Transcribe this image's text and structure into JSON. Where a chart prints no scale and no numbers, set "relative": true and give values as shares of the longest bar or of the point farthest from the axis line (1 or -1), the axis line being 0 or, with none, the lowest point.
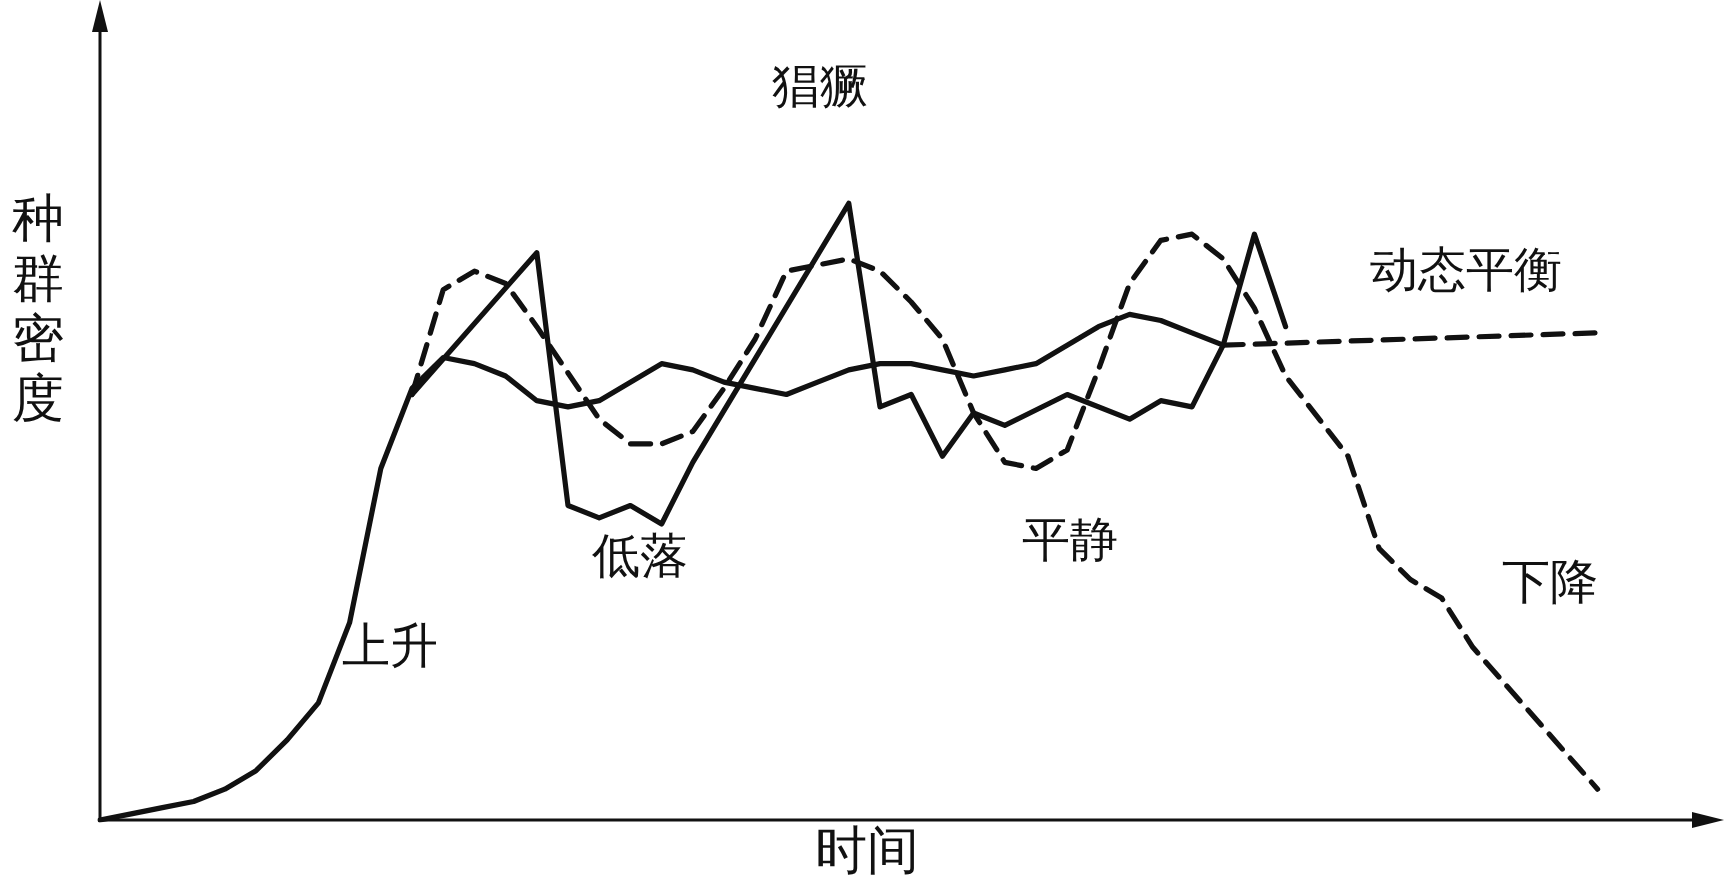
{
  "chart_data": {
    "type": "line",
    "relative": true,
    "xlabel": "时间",
    "ylabel": "种群密度",
    "marker": "none",
    "categories": [
      null,
      null,
      null,
      null,
      null,
      null,
      null,
      null,
      null,
      null,
      null,
      null,
      null,
      null,
      null,
      null,
      null,
      null,
      null,
      null,
      null,
      null,
      null,
      null,
      null,
      null,
      null,
      null,
      null,
      null,
      null,
      null,
      null,
      null,
      null,
      null,
      null,
      null,
      null,
      null,
      null,
      null,
      null,
      null,
      null,
      null,
      null,
      null,
      null,
      null,
      null
    ],
    "series": [
      {
        "color": "#111111",
        "line_style": "solid",
        "values": [
          0,
          0.01,
          0.02,
          0.03,
          0.05,
          0.08,
          0.13,
          0.19,
          0.32,
          0.57,
          0.7,
          0.75,
          0.74,
          0.72,
          0.68,
          0.67,
          0.68,
          0.71,
          0.74,
          0.73,
          0.71,
          0.7,
          0.69,
          0.71,
          0.73,
          0.74,
          0.74,
          0.73,
          0.72,
          0.73,
          0.74,
          0.77,
          0.8,
          0.82,
          0.81,
          0.79,
          0.77,
          null,
          null,
          null,
          null,
          null,
          null,
          null,
          null,
          null,
          null,
          null,
          null,
          null,
          null
        ]
      },
      {
        "color": "#111111",
        "line_style": "solid",
        "values": [
          null,
          null,
          null,
          null,
          null,
          null,
          null,
          null,
          null,
          null,
          0.69,
          null,
          null,
          null,
          0.92,
          0.51,
          0.49,
          0.51,
          0.48,
          0.58,
          null,
          null,
          null,
          null,
          1.0,
          0.67,
          0.69,
          0.59,
          0.66,
          0.64,
          null,
          0.69,
          null,
          0.65,
          0.68,
          0.67,
          0.77,
          0.95,
          0.8,
          null,
          null,
          null,
          null,
          null,
          null,
          null,
          null,
          null,
          null,
          null,
          null
        ]
      },
      {
        "color": "#111111",
        "line_style": "dashed",
        "values": [
          null,
          null,
          null,
          null,
          null,
          null,
          null,
          null,
          null,
          null,
          0.69,
          0.86,
          0.89,
          0.87,
          0.8,
          null,
          0.65,
          0.61,
          0.61,
          0.63,
          0.7,
          0.78,
          0.89,
          0.9,
          0.91,
          0.89,
          0.84,
          0.78,
          0.66,
          0.58,
          0.57,
          0.6,
          0.73,
          0.87,
          0.94,
          0.95,
          0.91,
          0.83,
          0.72,
          null,
          0.59,
          0.44,
          0.39,
          0.36,
          0.28,
          null,
          null,
          null,
          0.05,
          null,
          null
        ]
      },
      {
        "color": "#111111",
        "line_style": "dashed",
        "values": [
          null,
          null,
          null,
          null,
          null,
          null,
          null,
          null,
          null,
          null,
          null,
          null,
          null,
          null,
          null,
          null,
          null,
          null,
          null,
          null,
          null,
          null,
          null,
          null,
          null,
          null,
          null,
          null,
          null,
          null,
          null,
          null,
          null,
          null,
          null,
          null,
          0.77,
          null,
          null,
          null,
          null,
          null,
          null,
          null,
          null,
          null,
          null,
          null,
          0.79,
          null,
          null
        ]
      }
    ],
    "annotations": [
      "上升",
      "低落",
      "猖獗",
      "平静",
      "动态平衡",
      "下降"
    ]
  }
}
